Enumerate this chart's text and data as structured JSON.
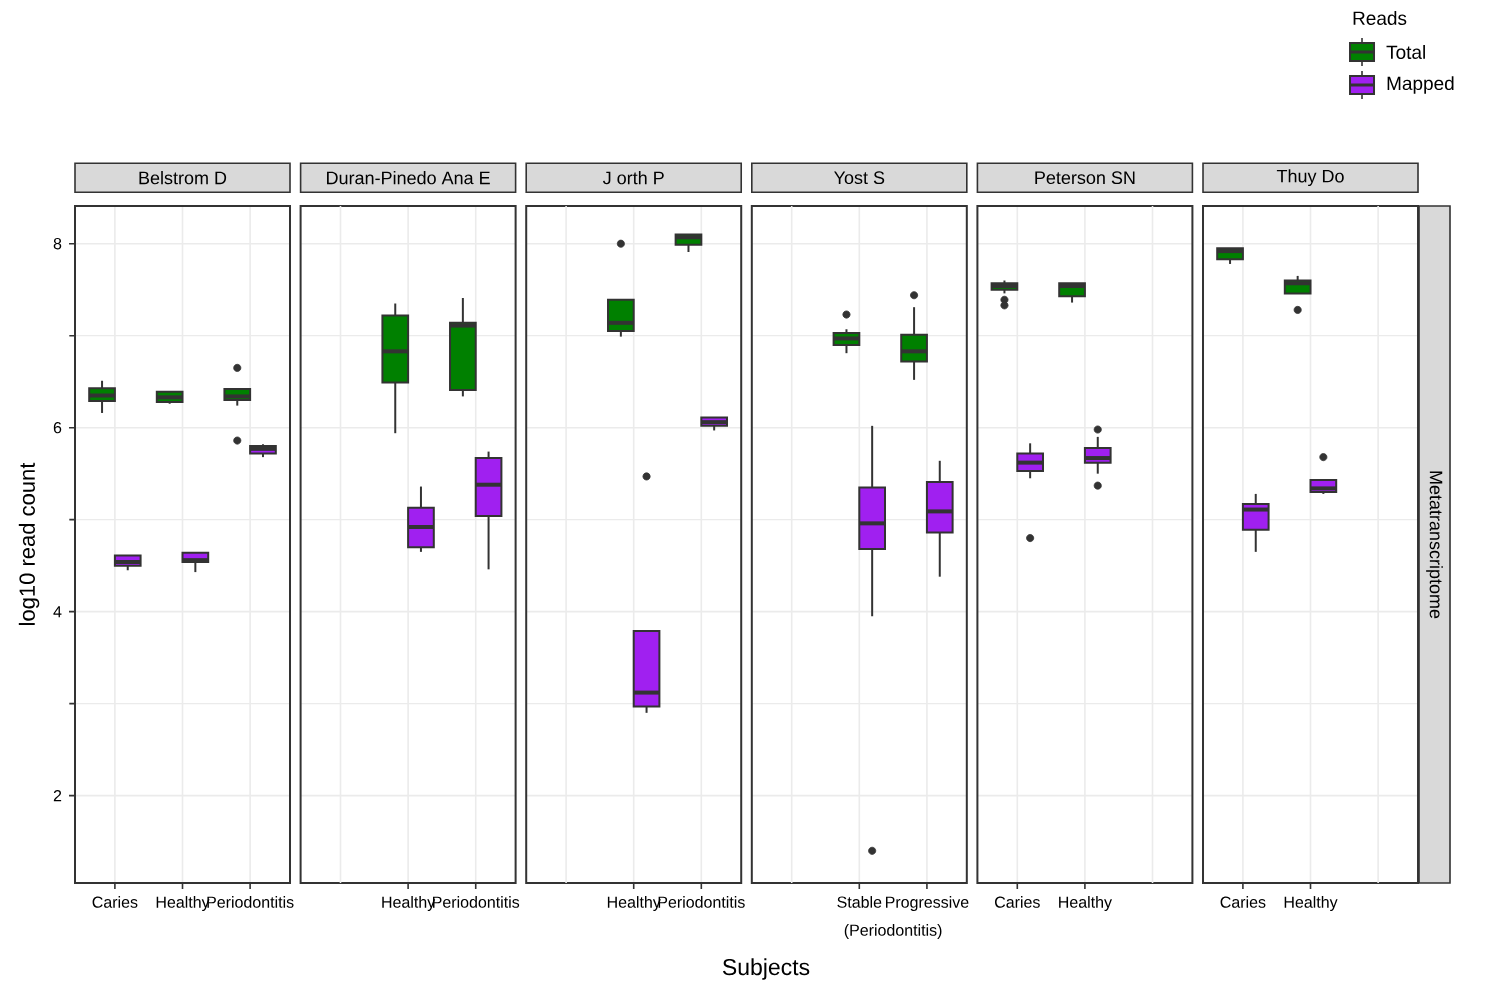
{
  "chart_data": [
    {
      "type": "box",
      "title": "Belstrom D",
      "categories": [
        "Caries",
        "Healthy",
        "Periodontitis"
      ],
      "ylim": [
        1.05,
        8.41
      ],
      "yticks": [
        2,
        4,
        6,
        8
      ],
      "grid": true,
      "ylabel": "log10 read count",
      "legend_title": "Reads",
      "legend": "top right",
      "series": [
        {
          "name": "Total",
          "color": "#008000",
          "boxes": [
            {
              "low": 6.16,
              "q1": 6.29,
              "median": 6.35,
              "q3": 6.43,
              "high": 6.51
            },
            {
              "low": 6.26,
              "q1": 6.28,
              "median": 6.33,
              "q3": 6.39,
              "high": 6.39
            },
            {
              "low": 6.24,
              "q1": 6.3,
              "median": 6.34,
              "q3": 6.42,
              "high": 6.43,
              "outliers": [
                6.65,
                5.86
              ]
            }
          ]
        },
        {
          "name": "Mapped",
          "color": "#a020f0",
          "boxes": [
            {
              "low": 4.45,
              "q1": 4.5,
              "median": 4.54,
              "q3": 4.61,
              "high": 4.61
            },
            {
              "low": 4.43,
              "q1": 4.54,
              "median": 4.56,
              "q3": 4.64,
              "high": 4.64
            },
            {
              "low": 5.68,
              "q1": 5.72,
              "median": 5.77,
              "q3": 5.8,
              "high": 5.82
            }
          ]
        }
      ]
    },
    {
      "type": "box",
      "title": "Duran-Pinedo Ana E",
      "categories": [
        null,
        "Healthy",
        "Periodontitis"
      ],
      "ylim": [
        1.05,
        8.41
      ],
      "yticks": [
        2,
        4,
        6,
        8
      ],
      "grid": true,
      "tick_labels": "x",
      "series": [
        {
          "color": "#008000",
          "boxes": [
            null,
            {
              "low": 5.94,
              "q1": 6.49,
              "median": 6.83,
              "q3": 7.22,
              "high": 7.35
            },
            {
              "low": 6.34,
              "q1": 6.41,
              "median": 7.11,
              "q3": 7.14,
              "high": 7.41
            }
          ]
        },
        {
          "color": "#a020f0",
          "boxes": [
            null,
            {
              "low": 4.65,
              "q1": 4.7,
              "median": 4.92,
              "q3": 5.13,
              "high": 5.36
            },
            {
              "low": 4.46,
              "q1": 5.04,
              "median": 5.38,
              "q3": 5.67,
              "high": 5.74
            }
          ]
        }
      ]
    },
    {
      "type": "box",
      "title": "J orth P",
      "categories": [
        null,
        "Healthy",
        "Periodontitis"
      ],
      "ylim": [
        1.05,
        8.41
      ],
      "yticks": [
        2,
        4,
        6,
        8
      ],
      "grid": true,
      "tick_labels": "x",
      "series": [
        {
          "color": "#008000",
          "boxes": [
            null,
            {
              "low": 6.99,
              "q1": 7.05,
              "median": 7.14,
              "q3": 7.39,
              "high": 7.39,
              "outliers": [
                8.0
              ]
            },
            {
              "low": 7.91,
              "q1": 7.99,
              "median": 8.07,
              "q3": 8.1,
              "high": 8.1
            }
          ]
        },
        {
          "color": "#a020f0",
          "boxes": [
            null,
            {
              "low": 2.9,
              "q1": 2.97,
              "median": 3.12,
              "q3": 3.79,
              "high": 3.79,
              "outliers": [
                5.47
              ]
            },
            {
              "low": 5.97,
              "q1": 6.02,
              "median": 6.06,
              "q3": 6.11,
              "high": 6.11
            }
          ]
        }
      ]
    },
    {
      "type": "box",
      "title": "Yost S",
      "categories": [
        null,
        "Stable",
        "Progressive"
      ],
      "ylim": [
        1.05,
        8.41
      ],
      "yticks": [
        2,
        4,
        6,
        8
      ],
      "grid": true,
      "tick_labels": "x",
      "xlabel": "Subjects",
      "annotations": [
        "(Periodontitis)"
      ],
      "series": [
        {
          "color": "#008000",
          "boxes": [
            null,
            {
              "low": 6.81,
              "q1": 6.9,
              "median": 6.97,
              "q3": 7.03,
              "high": 7.07,
              "outliers": [
                7.23
              ]
            },
            {
              "low": 6.52,
              "q1": 6.72,
              "median": 6.83,
              "q3": 7.01,
              "high": 7.31,
              "outliers": [
                7.44
              ]
            }
          ]
        },
        {
          "color": "#a020f0",
          "boxes": [
            null,
            {
              "low": 3.95,
              "q1": 4.68,
              "median": 4.96,
              "q3": 5.35,
              "high": 6.02,
              "outliers": [
                1.4
              ]
            },
            {
              "low": 4.38,
              "q1": 4.86,
              "median": 5.09,
              "q3": 5.41,
              "high": 5.64
            }
          ]
        }
      ]
    },
    {
      "type": "box",
      "title": "Peterson SN",
      "categories": [
        "Caries",
        "Healthy",
        null
      ],
      "ylim": [
        1.05,
        8.41
      ],
      "yticks": [
        2,
        4,
        6,
        8
      ],
      "grid": true,
      "tick_labels": "x",
      "series": [
        {
          "color": "#008000",
          "boxes": [
            {
              "low": 7.46,
              "q1": 7.5,
              "median": 7.54,
              "q3": 7.57,
              "high": 7.6,
              "outliers": [
                7.39,
                7.33
              ]
            },
            {
              "low": 7.36,
              "q1": 7.43,
              "median": 7.54,
              "q3": 7.57,
              "high": 7.57
            },
            null
          ]
        },
        {
          "color": "#a020f0",
          "boxes": [
            {
              "low": 5.45,
              "q1": 5.53,
              "median": 5.62,
              "q3": 5.72,
              "high": 5.83,
              "outliers": [
                4.8
              ]
            },
            {
              "low": 5.5,
              "q1": 5.62,
              "median": 5.67,
              "q3": 5.78,
              "high": 5.9,
              "outliers": [
                5.98,
                5.37
              ]
            },
            null
          ]
        }
      ]
    },
    {
      "type": "box",
      "title": "Thuy Do",
      "categories": [
        "Caries",
        "Healthy",
        null
      ],
      "ylim": [
        1.05,
        8.41
      ],
      "yticks": [
        2,
        4,
        6,
        8
      ],
      "grid": true,
      "tick_labels": "x",
      "annotations": [
        "Metatranscriptome"
      ],
      "series": [
        {
          "color": "#008000",
          "boxes": [
            {
              "low": 7.78,
              "q1": 7.83,
              "median": 7.92,
              "q3": 7.95,
              "high": 7.95
            },
            {
              "low": 7.46,
              "q1": 7.46,
              "median": 7.57,
              "q3": 7.6,
              "high": 7.65,
              "outliers": [
                7.28
              ]
            },
            null
          ]
        },
        {
          "color": "#a020f0",
          "boxes": [
            {
              "low": 4.65,
              "q1": 4.89,
              "median": 5.11,
              "q3": 5.17,
              "high": 5.28
            },
            {
              "low": 5.28,
              "q1": 5.3,
              "median": 5.34,
              "q3": 5.43,
              "high": 5.43,
              "outliers": [
                5.68
              ]
            },
            null
          ]
        }
      ]
    }
  ]
}
